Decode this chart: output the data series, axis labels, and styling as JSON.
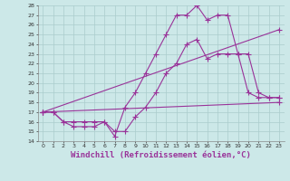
{
  "background_color": "#cce8e8",
  "grid_color": "#aacccc",
  "line_color": "#993399",
  "marker": "+",
  "marker_size": 4,
  "line_width": 0.8,
  "markeredgewidth": 0.8,
  "xlabel": "Windchill (Refroidissement éolien,°C)",
  "xlabel_fontsize": 6.5,
  "xlim": [
    -0.5,
    23.5
  ],
  "ylim": [
    14,
    28
  ],
  "ytick_min": 14,
  "ytick_max": 28,
  "xticks": [
    0,
    1,
    2,
    3,
    4,
    5,
    6,
    7,
    8,
    9,
    10,
    11,
    12,
    13,
    14,
    15,
    16,
    17,
    18,
    19,
    20,
    21,
    22,
    23
  ],
  "series": [
    {
      "x": [
        0,
        1,
        2,
        3,
        4,
        5,
        6,
        7,
        8,
        9,
        10,
        11,
        12,
        13,
        14,
        15,
        16,
        17,
        18,
        19,
        20,
        21,
        22,
        23
      ],
      "y": [
        17,
        17,
        16,
        16,
        16,
        16,
        16,
        14.5,
        17.5,
        19,
        21,
        23,
        25,
        27,
        27,
        28,
        26.5,
        27,
        27,
        23,
        19,
        18.5,
        18.5,
        18.5
      ]
    },
    {
      "x": [
        0,
        1,
        2,
        3,
        4,
        5,
        6,
        7,
        8,
        9,
        10,
        11,
        12,
        13,
        14,
        15,
        16,
        17,
        18,
        19,
        20,
        21,
        22,
        23
      ],
      "y": [
        17,
        17,
        16,
        15.5,
        15.5,
        15.5,
        16,
        15,
        15,
        16.5,
        17.5,
        19,
        21,
        22,
        24,
        24.5,
        22.5,
        23,
        23,
        23,
        23,
        19,
        18.5,
        18.5
      ]
    },
    {
      "x": [
        0,
        23
      ],
      "y": [
        17,
        18
      ]
    },
    {
      "x": [
        0,
        23
      ],
      "y": [
        17,
        25.5
      ]
    }
  ]
}
